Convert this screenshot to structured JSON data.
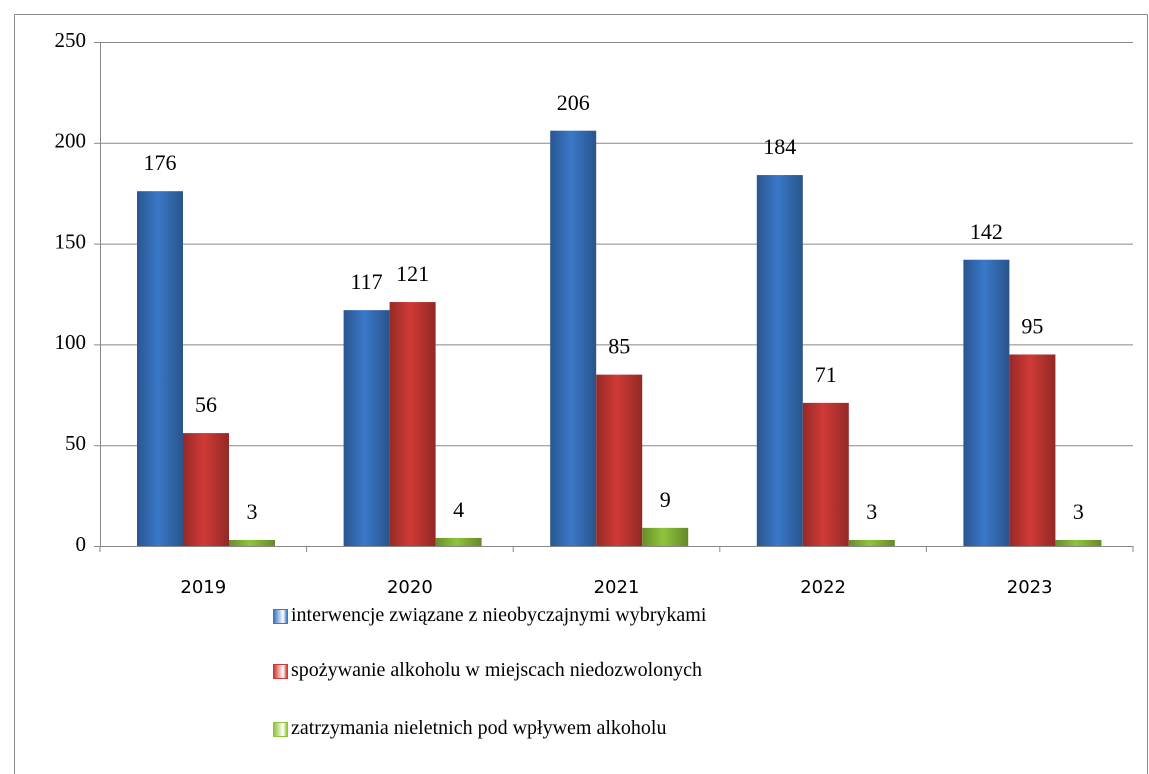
{
  "chart_data": {
    "type": "bar",
    "categories": [
      "2019",
      "2020",
      "2021",
      "2022",
      "2023"
    ],
    "series": [
      {
        "name": "interwencje związane z nieobyczajnymi wybrykami",
        "color": "#3a78c8",
        "values": [
          176,
          117,
          206,
          184,
          142
        ]
      },
      {
        "name": "spożywanie alkoholu w miejscach niedozwolonych",
        "color": "#d03a36",
        "values": [
          56,
          121,
          85,
          71,
          95
        ]
      },
      {
        "name": "zatrzymania nieletnich pod wpływem alkoholu",
        "color": "#90c43c",
        "values": [
          3,
          4,
          9,
          3,
          3
        ]
      }
    ],
    "ylim": [
      0,
      250
    ],
    "yticks": [
      0,
      50,
      100,
      150,
      200,
      250
    ],
    "grid": true,
    "legend": "bottom"
  }
}
